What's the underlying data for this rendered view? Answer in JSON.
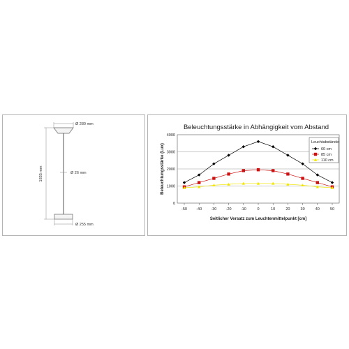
{
  "lamp_drawing": {
    "top_diameter_label": "Ø 280 mm",
    "stem_diameter_label": "Ø 26 mm",
    "height_label": "1835 mm",
    "base_diameter_label": "Ø 255 mm"
  },
  "chart_data": {
    "type": "line",
    "title": "Beleuchtungsstärke in Abhängigkeit vom Abstand",
    "xlabel": "Seitlicher Versatz zum Leuchtenmittelpunkt [cm]",
    "ylabel": "Beleuchtungsstärke (Lux)",
    "x": [
      -50,
      -40,
      -30,
      -20,
      -10,
      0,
      10,
      20,
      30,
      40,
      50
    ],
    "x_ticks": [
      "-50",
      "-40",
      "-30",
      "-20",
      "-10",
      "0",
      "10",
      "20",
      "30",
      "40",
      "50"
    ],
    "y_ticks": [
      "0",
      "1000",
      "2000",
      "3000",
      "4000"
    ],
    "xlim": [
      -50,
      50
    ],
    "ylim": [
      0,
      4000
    ],
    "grid": "horizontal",
    "legend_title": "Leuchtabstände:",
    "legend_position": "top-right",
    "series": [
      {
        "name": "60 cm",
        "color": "#000000",
        "marker": "diamond",
        "values": [
          1200,
          1650,
          2300,
          2800,
          3300,
          3600,
          3300,
          2800,
          2300,
          1650,
          1200
        ]
      },
      {
        "name": "85 cm",
        "color": "#cc1111",
        "marker": "square",
        "values": [
          950,
          1200,
          1450,
          1700,
          1900,
          1950,
          1900,
          1700,
          1450,
          1200,
          950
        ]
      },
      {
        "name": "110 cm",
        "color": "#f2e600",
        "marker": "triangle",
        "values": [
          900,
          950,
          1050,
          1100,
          1150,
          1150,
          1150,
          1100,
          1050,
          950,
          900
        ]
      }
    ]
  }
}
